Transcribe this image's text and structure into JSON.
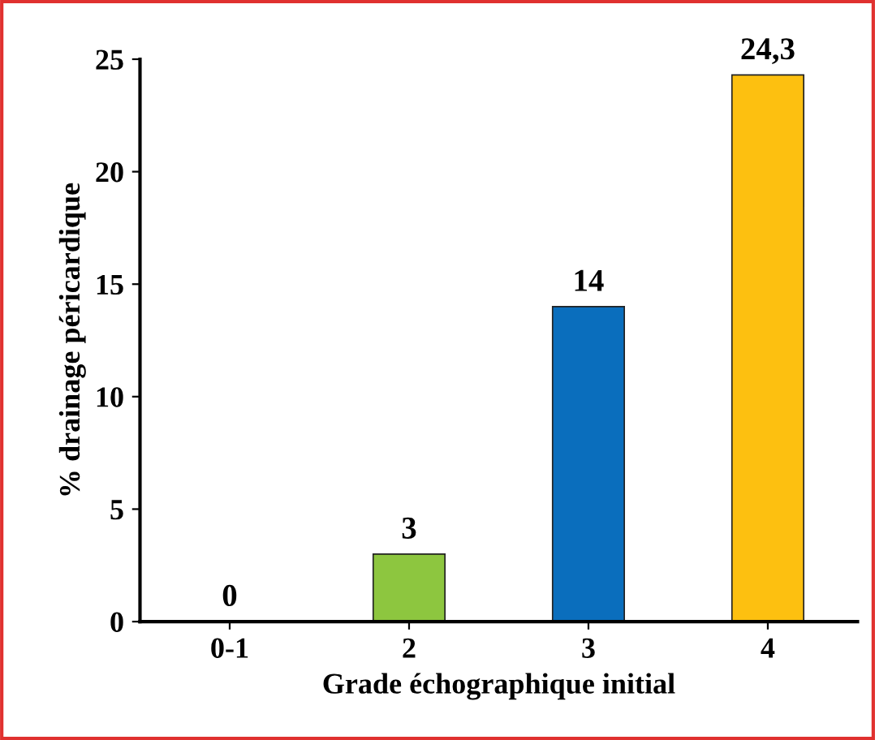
{
  "chart_data": {
    "type": "bar",
    "xlabel": "Grade échographique initial",
    "ylabel": "% drainage péricardique",
    "categories": [
      "0-1",
      "2",
      "3",
      "4"
    ],
    "values": [
      0,
      3,
      14,
      24.3
    ],
    "colors": [
      "#8dc63f",
      "#8dc63f",
      "#0a6ebd",
      "#fdc010"
    ],
    "value_labels": [
      "0",
      "3",
      "14",
      "24,3"
    ],
    "ylim": [
      0,
      25
    ],
    "yticks": [
      0,
      5,
      10,
      15,
      20,
      25
    ],
    "grid": false,
    "legend": false
  }
}
